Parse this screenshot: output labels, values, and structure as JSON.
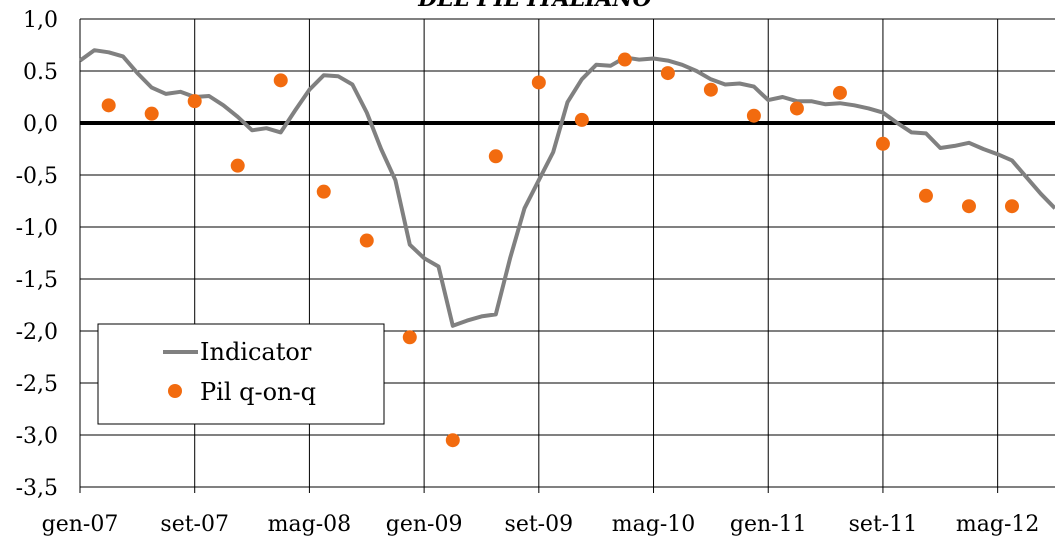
{
  "chart_data": {
    "type": "line",
    "title": "DEL PIL ITALIANO",
    "xlabel": "",
    "ylabel": "",
    "ylim": [
      -3.5,
      1.0
    ],
    "ytick_labels": [
      "1,0",
      "0.5",
      "0,0",
      "-0,5",
      "-1,0",
      "-1,5",
      "-2,0",
      "-2,5",
      "-3,0",
      "-3,5"
    ],
    "ytick_values": [
      1.0,
      0.5,
      0.0,
      -0.5,
      -1.0,
      -1.5,
      -2.0,
      -2.5,
      -3.0,
      -3.5
    ],
    "xlim": [
      "2007-01",
      "2012-09"
    ],
    "xtick_labels": [
      "gen-07",
      "set-07",
      "mag-08",
      "gen-09",
      "set-09",
      "mag-10",
      "gen-11",
      "set-11",
      "mag-12"
    ],
    "xtick_values": [
      "2007-01",
      "2007-09",
      "2008-05",
      "2009-01",
      "2009-09",
      "2010-05",
      "2011-01",
      "2011-09",
      "2012-05"
    ],
    "grid": true,
    "zero_line": true,
    "legend_position": "bottom-left",
    "colors": {
      "indicator": "#808080",
      "pil": "#F26B0F",
      "zero_line": "#000000",
      "grid": "#000000"
    },
    "series": [
      {
        "name": "Indicator",
        "type": "line",
        "x": [
          "2007-01",
          "2007-02",
          "2007-03",
          "2007-04",
          "2007-05",
          "2007-06",
          "2007-07",
          "2007-08",
          "2007-09",
          "2007-10",
          "2007-11",
          "2007-12",
          "2008-01",
          "2008-02",
          "2008-03",
          "2008-04",
          "2008-05",
          "2008-06",
          "2008-07",
          "2008-08",
          "2008-09",
          "2008-10",
          "2008-11",
          "2008-12",
          "2009-01",
          "2009-02",
          "2009-03",
          "2009-04",
          "2009-05",
          "2009-06",
          "2009-07",
          "2009-08",
          "2009-09",
          "2009-10",
          "2009-11",
          "2009-12",
          "2010-01",
          "2010-02",
          "2010-03",
          "2010-04",
          "2010-05",
          "2010-06",
          "2010-07",
          "2010-08",
          "2010-09",
          "2010-10",
          "2010-11",
          "2010-12",
          "2011-01",
          "2011-02",
          "2011-03",
          "2011-04",
          "2011-05",
          "2011-06",
          "2011-07",
          "2011-08",
          "2011-09",
          "2011-10",
          "2011-11",
          "2011-12",
          "2012-01",
          "2012-02",
          "2012-03",
          "2012-04",
          "2012-05",
          "2012-06",
          "2012-07",
          "2012-08",
          "2012-09"
        ],
        "y": [
          0.6,
          0.7,
          0.68,
          0.64,
          0.48,
          0.34,
          0.28,
          0.3,
          0.25,
          0.26,
          0.17,
          0.06,
          -0.07,
          -0.05,
          -0.09,
          0.12,
          0.32,
          0.46,
          0.45,
          0.37,
          0.1,
          -0.25,
          -0.55,
          -1.17,
          -1.3,
          -1.38,
          -1.95,
          -1.9,
          -1.86,
          -1.84,
          -1.3,
          -0.82,
          -0.55,
          -0.28,
          0.2,
          0.42,
          0.56,
          0.55,
          0.63,
          0.61,
          0.62,
          0.6,
          0.56,
          0.5,
          0.42,
          0.37,
          0.38,
          0.35,
          0.22,
          0.25,
          0.21,
          0.21,
          0.18,
          0.19,
          0.17,
          0.14,
          0.1,
          0.0,
          -0.09,
          -0.1,
          -0.24,
          -0.22,
          -0.19,
          -0.25,
          -0.3,
          -0.36,
          -0.52,
          -0.68,
          -0.82
        ]
      },
      {
        "name": "Pil q-on-q",
        "type": "scatter",
        "x": [
          "2007-03",
          "2007-06",
          "2007-09",
          "2007-12",
          "2008-03",
          "2008-06",
          "2008-09",
          "2008-12",
          "2009-03",
          "2009-06",
          "2009-09",
          "2009-12",
          "2010-03",
          "2010-06",
          "2010-09",
          "2010-12",
          "2011-03",
          "2011-06",
          "2011-09",
          "2011-12",
          "2012-03",
          "2012-06"
        ],
        "y": [
          0.17,
          0.09,
          0.21,
          -0.41,
          0.41,
          -0.66,
          -1.13,
          -2.06,
          -3.05,
          -0.32,
          0.39,
          0.03,
          0.61,
          0.48,
          0.32,
          0.07,
          0.14,
          0.29,
          -0.2,
          -0.7,
          -0.8,
          -0.8
        ]
      }
    ]
  }
}
